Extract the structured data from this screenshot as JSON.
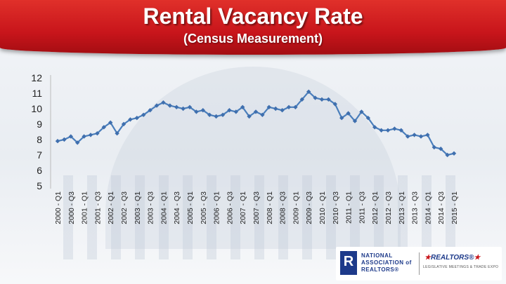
{
  "header": {
    "title": "Rental Vacancy Rate",
    "subtitle": "(Census Measurement)"
  },
  "colors": {
    "header_red": "#c8151b",
    "series_line": "#4a7ebb",
    "series_marker": "#3f6fae",
    "axis_text": "#222222"
  },
  "logos": {
    "nar_mark_letter": "R",
    "nar_text_line1": "NATIONAL",
    "nar_text_line2": "ASSOCIATION of",
    "nar_text_line3": "REALTORS®",
    "realtors_word": "REALTORS®",
    "legislative_text": "LEGISLATIVE MEETINGS & TRADE EXPO"
  },
  "chart_data": {
    "type": "line",
    "title": "Rental Vacancy Rate",
    "subtitle": "(Census Measurement)",
    "xlabel": "",
    "ylabel": "",
    "ylim": [
      5,
      12
    ],
    "yticks": [
      5,
      6,
      7,
      8,
      9,
      10,
      11,
      12
    ],
    "grid": false,
    "legend": "none",
    "x_tick_labels": [
      "2000 - Q1",
      "2000 - Q3",
      "2001 - Q1",
      "2001 - Q3",
      "2002 - Q1",
      "2002 - Q3",
      "2003 - Q1",
      "2003 - Q3",
      "2004 - Q1",
      "2004 - Q3",
      "2005 - Q1",
      "2005 - Q3",
      "2006 - Q1",
      "2006 - Q3",
      "2007 - Q1",
      "2007 - Q3",
      "2008 - Q1",
      "2008 - Q3",
      "2009 - Q1",
      "2009 - Q3",
      "2010 - Q1",
      "2010 - Q3",
      "2011 - Q1",
      "2011 - Q3",
      "2012 - Q1",
      "2012 - Q3",
      "2013 - Q1",
      "2013 - Q3",
      "2014 - Q1",
      "2014 - Q3",
      "2015 - Q1"
    ],
    "x": [
      "2000 - Q1",
      "2000 - Q2",
      "2000 - Q3",
      "2000 - Q4",
      "2001 - Q1",
      "2001 - Q2",
      "2001 - Q3",
      "2001 - Q4",
      "2002 - Q1",
      "2002 - Q2",
      "2002 - Q3",
      "2002 - Q4",
      "2003 - Q1",
      "2003 - Q2",
      "2003 - Q3",
      "2003 - Q4",
      "2004 - Q1",
      "2004 - Q2",
      "2004 - Q3",
      "2004 - Q4",
      "2005 - Q1",
      "2005 - Q2",
      "2005 - Q3",
      "2005 - Q4",
      "2006 - Q1",
      "2006 - Q2",
      "2006 - Q3",
      "2006 - Q4",
      "2007 - Q1",
      "2007 - Q2",
      "2007 - Q3",
      "2007 - Q4",
      "2008 - Q1",
      "2008 - Q2",
      "2008 - Q3",
      "2008 - Q4",
      "2009 - Q1",
      "2009 - Q2",
      "2009 - Q3",
      "2009 - Q4",
      "2010 - Q1",
      "2010 - Q2",
      "2010 - Q3",
      "2010 - Q4",
      "2011 - Q1",
      "2011 - Q2",
      "2011 - Q3",
      "2011 - Q4",
      "2012 - Q1",
      "2012 - Q2",
      "2012 - Q3",
      "2012 - Q4",
      "2013 - Q1",
      "2013 - Q2",
      "2013 - Q3",
      "2013 - Q4",
      "2014 - Q1",
      "2014 - Q2",
      "2014 - Q3",
      "2014 - Q4",
      "2015 - Q1"
    ],
    "series": [
      {
        "values": [
          7.9,
          8.0,
          8.2,
          7.8,
          8.2,
          8.3,
          8.4,
          8.8,
          9.1,
          8.4,
          9.0,
          9.3,
          9.4,
          9.6,
          9.9,
          10.2,
          10.4,
          10.2,
          10.1,
          10.0,
          10.1,
          9.8,
          9.9,
          9.6,
          9.5,
          9.6,
          9.9,
          9.8,
          10.1,
          9.5,
          9.8,
          9.6,
          10.1,
          10.0,
          9.9,
          10.1,
          10.1,
          10.6,
          11.1,
          10.7,
          10.6,
          10.6,
          10.3,
          9.4,
          9.7,
          9.2,
          9.8,
          9.4,
          8.8,
          8.6,
          8.6,
          8.7,
          8.6,
          8.2,
          8.3,
          8.2,
          8.3,
          7.5,
          7.4,
          7.0,
          7.1
        ]
      }
    ]
  }
}
